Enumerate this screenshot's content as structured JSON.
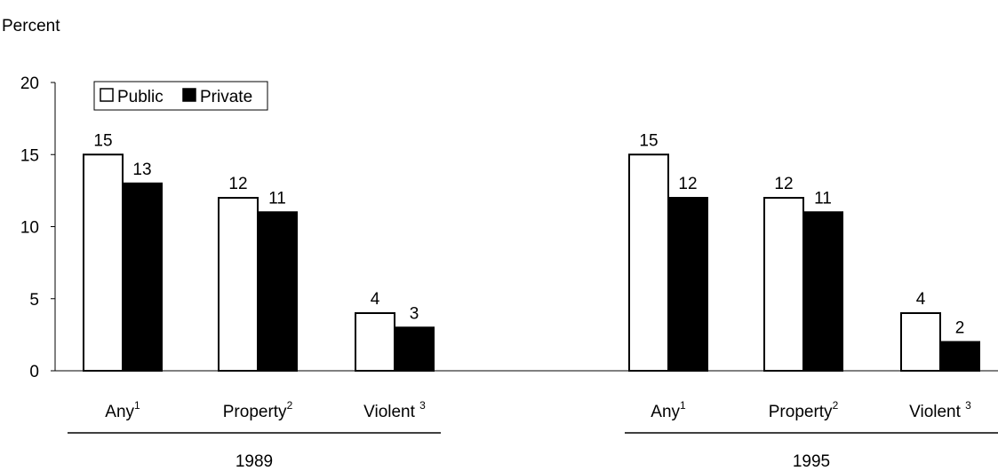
{
  "chart_data": {
    "type": "bar",
    "ylabel": "Percent",
    "ylim": [
      0,
      20
    ],
    "yticks": [
      0,
      5,
      10,
      15,
      20
    ],
    "grid": false,
    "legend_position": "top-left",
    "groups": [
      {
        "label": "1989",
        "categories": [
          {
            "label": "Any",
            "footnote": "1"
          },
          {
            "label": "Property",
            "footnote": "2"
          },
          {
            "label": "Violent ",
            "footnote": "3"
          }
        ]
      },
      {
        "label": "1995",
        "categories": [
          {
            "label": "Any",
            "footnote": "1"
          },
          {
            "label": "Property",
            "footnote": "2"
          },
          {
            "label": "Violent ",
            "footnote": "3"
          }
        ]
      }
    ],
    "series": [
      {
        "name": "Public",
        "color": "#ffffff",
        "values": [
          15,
          12,
          4,
          15,
          12,
          4
        ]
      },
      {
        "name": "Private",
        "color": "#000000",
        "values": [
          13,
          11,
          3,
          12,
          11,
          2
        ]
      }
    ]
  }
}
